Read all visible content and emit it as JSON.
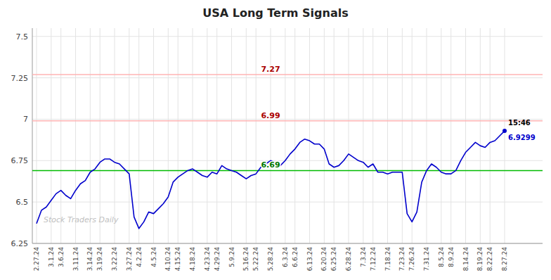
{
  "chart_data": {
    "type": "line",
    "title": "USA Long Term Signals",
    "categories": [
      "2.27.24",
      null,
      null,
      "3.1.24",
      null,
      "3.6.24",
      null,
      null,
      "3.11.24",
      null,
      null,
      "3.14.24",
      null,
      "3.19.24",
      null,
      null,
      "3.22.24",
      null,
      null,
      "3.27.24",
      null,
      "4.2.24",
      null,
      null,
      "4.5.24",
      null,
      null,
      "4.10.24",
      null,
      "4.15.24",
      null,
      null,
      "4.18.24",
      null,
      null,
      "4.23.24",
      null,
      "4.29.24",
      null,
      null,
      "5.9.24",
      null,
      null,
      "5.16.24",
      null,
      "5.22.24",
      null,
      null,
      "5.28.24",
      null,
      null,
      "6.3.24",
      null,
      "6.6.24",
      null,
      null,
      "6.13.24",
      null,
      null,
      "6.20.24",
      null,
      "6.25.24",
      null,
      null,
      "6.28.24",
      null,
      null,
      "7.3.24",
      null,
      "7.12.24",
      null,
      null,
      "7.18.24",
      null,
      null,
      "7.23.24",
      null,
      "7.26.24",
      null,
      null,
      "7.31.24",
      null,
      null,
      "8.5.24",
      null,
      "8.9.24",
      null,
      null,
      "8.14.24",
      null,
      null,
      "8.19.24",
      null,
      "8.22.24",
      null,
      null,
      "8.27.24"
    ],
    "values": [
      6.37,
      6.45,
      6.47,
      6.51,
      6.55,
      6.57,
      6.54,
      6.52,
      6.57,
      6.61,
      6.63,
      6.68,
      6.7,
      6.74,
      6.76,
      6.76,
      6.74,
      6.73,
      6.7,
      6.67,
      6.41,
      6.34,
      6.38,
      6.44,
      6.43,
      6.46,
      6.49,
      6.53,
      6.62,
      6.65,
      6.67,
      6.69,
      6.7,
      6.68,
      6.66,
      6.65,
      6.68,
      6.67,
      6.72,
      6.7,
      6.69,
      6.68,
      6.66,
      6.64,
      6.66,
      6.67,
      6.71,
      6.73,
      6.75,
      6.74,
      6.72,
      6.75,
      6.79,
      6.82,
      6.86,
      6.88,
      6.87,
      6.85,
      6.85,
      6.82,
      6.73,
      6.71,
      6.72,
      6.75,
      6.79,
      6.77,
      6.75,
      6.74,
      6.71,
      6.73,
      6.68,
      6.68,
      6.67,
      6.68,
      6.68,
      6.68,
      6.43,
      6.38,
      6.44,
      6.62,
      6.69,
      6.73,
      6.71,
      6.68,
      6.67,
      6.67,
      6.69,
      6.75,
      6.8,
      6.83,
      6.86,
      6.84,
      6.83,
      6.86,
      6.87,
      6.9,
      6.93
    ],
    "color": "#0000cc",
    "ylim": [
      6.25,
      7.55
    ],
    "yticks": [
      6.25,
      6.5,
      6.75,
      7,
      7.25,
      7.5
    ],
    "grid": true,
    "hlines": [
      {
        "value": 7.27,
        "label": "7.27",
        "color": "#ffb3b3",
        "label_color": "#aa0000"
      },
      {
        "value": 6.99,
        "label": "6.99",
        "color": "#ffb3b3",
        "label_color": "#aa0000"
      },
      {
        "value": 6.69,
        "label": "6.69",
        "color": "#00bb00",
        "label_color": "#007700"
      }
    ],
    "annotations": [
      {
        "text": "15:46",
        "color": "#000000"
      },
      {
        "text": "6.9299",
        "color": "#0000cc"
      }
    ],
    "watermark": "Stock Traders Daily"
  }
}
